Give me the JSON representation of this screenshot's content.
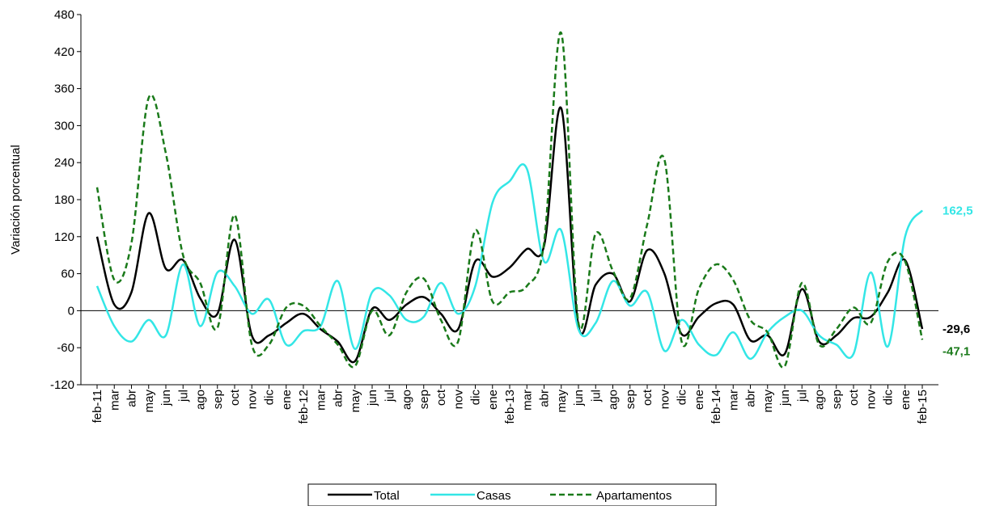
{
  "chart_data": {
    "type": "line",
    "y_label": "Variación porcentual",
    "categories": [
      "feb-11",
      "mar",
      "abr",
      "may",
      "jun",
      "jul",
      "ago",
      "sep",
      "oct",
      "nov",
      "dic",
      "ene",
      "feb-12",
      "mar",
      "abr",
      "may",
      "jun",
      "jul",
      "ago",
      "sep",
      "oct",
      "nov",
      "dic",
      "ene",
      "feb-13",
      "mar",
      "abr",
      "may",
      "jun",
      "jul",
      "ago",
      "sep",
      "oct",
      "nov",
      "dic",
      "ene",
      "feb-14",
      "mar",
      "abr",
      "may",
      "jun",
      "jul",
      "ago",
      "sep",
      "oct",
      "nov",
      "dic",
      "ene",
      "feb-15"
    ],
    "series": [
      {
        "name": "Total",
        "color": "#000000",
        "dash": false,
        "values": [
          120,
          10,
          30,
          158,
          68,
          82,
          20,
          -5,
          115,
          -40,
          -40,
          -20,
          -5,
          -30,
          -50,
          -82,
          3,
          -15,
          10,
          22,
          -5,
          -30,
          80,
          55,
          70,
          100,
          105,
          328,
          -25,
          42,
          60,
          15,
          98,
          60,
          -38,
          -10,
          12,
          10,
          -48,
          -40,
          -70,
          35,
          -50,
          -40,
          -12,
          -10,
          30,
          82,
          -29.6
        ],
        "value_labels": [
          null,
          null,
          null,
          null,
          null,
          null,
          null,
          null,
          null,
          null,
          null,
          null,
          null,
          null,
          null,
          null,
          null,
          null,
          null,
          null,
          null,
          null,
          null,
          null,
          null,
          null,
          null,
          null,
          null,
          null,
          null,
          null,
          null,
          null,
          null,
          null,
          null,
          null,
          null,
          null,
          null,
          null,
          null,
          null,
          null,
          null,
          null,
          null,
          "-29,6"
        ]
      },
      {
        "name": "Casas",
        "color": "#33e6e6",
        "dash": false,
        "values": [
          40,
          -25,
          -50,
          -15,
          -40,
          75,
          -25,
          62,
          40,
          -5,
          18,
          -55,
          -33,
          -25,
          48,
          -62,
          30,
          25,
          -15,
          -10,
          45,
          -5,
          40,
          175,
          210,
          230,
          80,
          130,
          -30,
          -20,
          48,
          8,
          30,
          -65,
          -15,
          -55,
          -72,
          -35,
          -78,
          -35,
          -10,
          0,
          -40,
          -55,
          -70,
          62,
          -58,
          120,
          162.5
        ],
        "value_labels": [
          null,
          null,
          null,
          null,
          null,
          null,
          null,
          null,
          null,
          null,
          null,
          null,
          null,
          null,
          null,
          null,
          null,
          null,
          null,
          null,
          null,
          null,
          null,
          null,
          null,
          null,
          null,
          null,
          null,
          null,
          null,
          null,
          null,
          null,
          null,
          null,
          null,
          null,
          null,
          null,
          null,
          null,
          null,
          null,
          null,
          null,
          null,
          null,
          "162,5"
        ]
      },
      {
        "name": "Apartamentos",
        "color": "#1a7a1a",
        "dash": true,
        "values": [
          200,
          50,
          110,
          345,
          255,
          90,
          45,
          -28,
          155,
          -55,
          -55,
          5,
          8,
          -25,
          -55,
          -90,
          0,
          -40,
          30,
          52,
          -15,
          -50,
          130,
          15,
          30,
          40,
          110,
          450,
          -20,
          125,
          65,
          20,
          140,
          245,
          -50,
          35,
          75,
          50,
          -15,
          -35,
          -90,
          45,
          -55,
          -30,
          5,
          -20,
          80,
          80,
          -47.1
        ],
        "value_labels": [
          null,
          null,
          null,
          null,
          null,
          null,
          null,
          null,
          null,
          null,
          null,
          null,
          null,
          null,
          null,
          null,
          null,
          null,
          null,
          null,
          null,
          null,
          null,
          null,
          null,
          null,
          null,
          null,
          null,
          null,
          null,
          null,
          null,
          null,
          null,
          null,
          null,
          null,
          null,
          null,
          null,
          null,
          null,
          null,
          null,
          null,
          null,
          null,
          "-47,1"
        ]
      }
    ],
    "ylim": [
      -120,
      480
    ],
    "yticks": [
      -120,
      -60,
      0,
      60,
      120,
      180,
      240,
      300,
      360,
      420,
      480
    ],
    "grid": false,
    "legend": "bottom"
  }
}
